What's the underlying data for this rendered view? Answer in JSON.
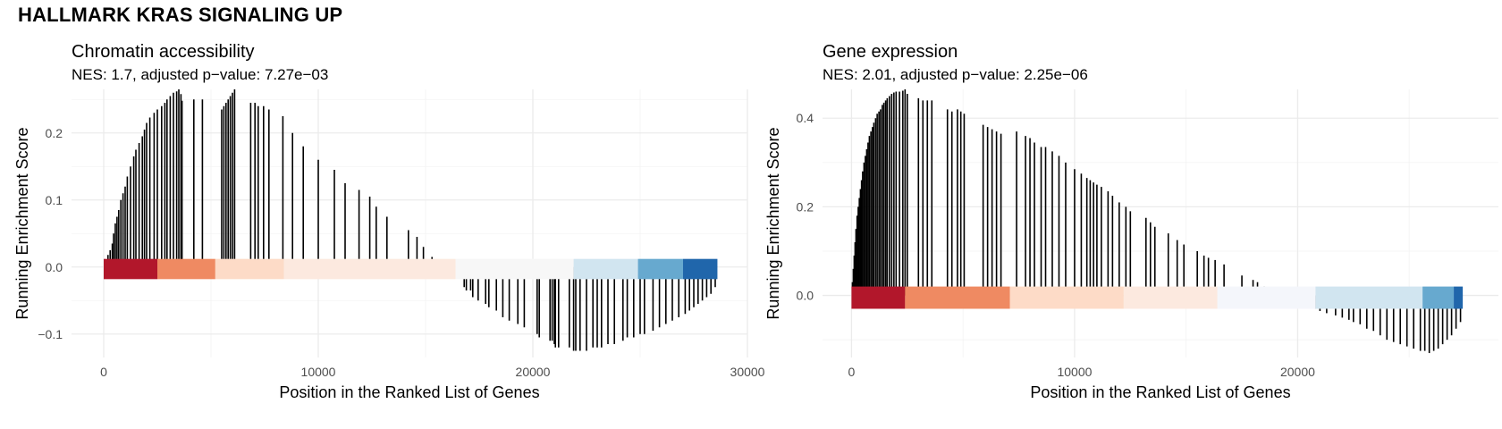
{
  "title": "HALLMARK KRAS SIGNALING UP",
  "colors": {
    "up_dark": "#b2182b",
    "up_mid": "#ef8a62",
    "up_light": "#fddbc7",
    "neutral": "#f7f7f7",
    "down_light": "#d1e5f0",
    "down_mid": "#67a9cf",
    "down_dark": "#2166ac",
    "hit": "#000000"
  },
  "chart_data": [
    {
      "type": "bar",
      "title": "Chromatin accessibility",
      "subtitle": "NES: 1.7, adjusted p−value: 7.27e−03",
      "xlabel": "Position in the Ranked List of Genes",
      "ylabel": "Running Enrichment Score",
      "xlim": [
        -1500,
        30000
      ],
      "ylim": [
        -0.135,
        0.265
      ],
      "x_ticks": [
        0,
        10000,
        20000,
        30000
      ],
      "x_tick_labels": [
        "0",
        "10000",
        "20000",
        "30000"
      ],
      "y_ticks": [
        -0.1,
        0.0,
        0.1,
        0.2
      ],
      "y_tick_labels": [
        "−0.1",
        "0.0",
        "0.1",
        "0.2"
      ],
      "grid": true,
      "rank_color_bar": {
        "y_range": [
          -0.018,
          0.012
        ],
        "segments": [
          {
            "x0": 0,
            "x1": 2500,
            "color": "#b2182b"
          },
          {
            "x0": 2500,
            "x1": 5200,
            "color": "#ef8a62"
          },
          {
            "x0": 5200,
            "x1": 8400,
            "color": "#fddbc7"
          },
          {
            "x0": 8400,
            "x1": 16400,
            "color": "#fce9df"
          },
          {
            "x0": 16400,
            "x1": 21900,
            "color": "#f7f7f7"
          },
          {
            "x0": 21900,
            "x1": 24900,
            "color": "#d1e5f0"
          },
          {
            "x0": 24900,
            "x1": 27000,
            "color": "#67a9cf"
          },
          {
            "x0": 27000,
            "x1": 28600,
            "color": "#2166ac"
          }
        ]
      },
      "hits": {
        "x": [
          100,
          150,
          200,
          300,
          400,
          460,
          540,
          620,
          700,
          800,
          900,
          1000,
          1100,
          1250,
          1400,
          1500,
          1650,
          1800,
          1900,
          2000,
          2150,
          2350,
          2500,
          2700,
          2850,
          2950,
          3100,
          3250,
          3400,
          3500,
          3600,
          3650,
          4200,
          4600,
          5500,
          5600,
          5700,
          5800,
          5900,
          6000,
          6100,
          6850,
          7050,
          7200,
          7450,
          7700,
          8350,
          8800,
          9300,
          10000,
          10750,
          11250,
          11900,
          12400,
          12700,
          13200,
          14200,
          14600,
          14900,
          15300,
          16200,
          16800,
          16900,
          17100,
          17200,
          17450,
          17800,
          17950,
          18300,
          18600,
          18900,
          19300,
          19600,
          20200,
          20300,
          20800,
          20900,
          21000,
          21050,
          21200,
          21700,
          21900,
          22000,
          22200,
          22500,
          22800,
          23000,
          23200,
          23500,
          23800,
          24200,
          24400,
          24700,
          25000,
          25200,
          25600,
          25900,
          26200,
          26500,
          26800,
          27100,
          27300,
          27500,
          27700,
          27900,
          28100,
          28300,
          28500
        ],
        "es": [
          0.005,
          0.01,
          0.018,
          0.025,
          0.035,
          0.05,
          0.065,
          0.075,
          0.085,
          0.1,
          0.11,
          0.12,
          0.135,
          0.15,
          0.165,
          0.175,
          0.185,
          0.195,
          0.205,
          0.215,
          0.223,
          0.23,
          0.235,
          0.24,
          0.245,
          0.25,
          0.255,
          0.26,
          0.262,
          0.265,
          0.258,
          0.248,
          0.25,
          0.25,
          0.235,
          0.24,
          0.245,
          0.25,
          0.255,
          0.26,
          0.265,
          0.245,
          0.245,
          0.24,
          0.24,
          0.235,
          0.225,
          0.2,
          0.18,
          0.16,
          0.145,
          0.125,
          0.115,
          0.105,
          0.09,
          0.075,
          0.055,
          0.045,
          0.03,
          0.015,
          -0.015,
          -0.03,
          -0.035,
          -0.035,
          -0.045,
          -0.05,
          -0.055,
          -0.06,
          -0.065,
          -0.075,
          -0.08,
          -0.085,
          -0.09,
          -0.1,
          -0.105,
          -0.11,
          -0.11,
          -0.115,
          -0.12,
          -0.12,
          -0.12,
          -0.125,
          -0.125,
          -0.125,
          -0.125,
          -0.12,
          -0.12,
          -0.12,
          -0.115,
          -0.115,
          -0.11,
          -0.105,
          -0.105,
          -0.1,
          -0.1,
          -0.095,
          -0.09,
          -0.085,
          -0.08,
          -0.075,
          -0.07,
          -0.065,
          -0.06,
          -0.055,
          -0.05,
          -0.045,
          -0.04,
          -0.03
        ]
      }
    },
    {
      "type": "bar",
      "title": "Gene expression",
      "subtitle": "NES: 2.01, adjusted p−value: 2.25e−06",
      "xlabel": "Position in the Ranked List of Genes",
      "ylabel": "Running Enrichment Score",
      "xlim": [
        -1300,
        29000
      ],
      "ylim": [
        -0.14,
        0.465
      ],
      "x_ticks": [
        0,
        10000,
        20000
      ],
      "x_tick_labels": [
        "0",
        "10000",
        "20000"
      ],
      "y_ticks": [
        0.0,
        0.2,
        0.4
      ],
      "y_tick_labels": [
        "0.0",
        "0.2",
        "0.4"
      ],
      "grid": true,
      "rank_color_bar": {
        "y_range": [
          -0.03,
          0.02
        ],
        "segments": [
          {
            "x0": 0,
            "x1": 2400,
            "color": "#b2182b"
          },
          {
            "x0": 2400,
            "x1": 7100,
            "color": "#ef8a62"
          },
          {
            "x0": 7100,
            "x1": 12200,
            "color": "#fddbc7"
          },
          {
            "x0": 12200,
            "x1": 16400,
            "color": "#fce9df"
          },
          {
            "x0": 16400,
            "x1": 20800,
            "color": "#f4f6fb"
          },
          {
            "x0": 20800,
            "x1": 25600,
            "color": "#d1e5f0"
          },
          {
            "x0": 25600,
            "x1": 27000,
            "color": "#67a9cf"
          },
          {
            "x0": 27000,
            "x1": 27400,
            "color": "#2166ac"
          }
        ]
      },
      "hits": {
        "x": [
          40,
          80,
          120,
          160,
          200,
          250,
          300,
          350,
          400,
          450,
          500,
          560,
          620,
          680,
          740,
          800,
          870,
          940,
          1000,
          1080,
          1150,
          1230,
          1300,
          1380,
          1450,
          1530,
          1600,
          1700,
          1800,
          1900,
          2000,
          2150,
          2300,
          2400,
          2500,
          3000,
          3200,
          3400,
          3600,
          4300,
          4500,
          4750,
          4900,
          5050,
          5900,
          6100,
          6300,
          6500,
          6700,
          7400,
          7800,
          8000,
          8200,
          8500,
          8700,
          9000,
          9300,
          9600,
          10000,
          10300,
          10550,
          10700,
          10850,
          11000,
          11200,
          11500,
          11700,
          12000,
          12300,
          12500,
          13200,
          13400,
          13600,
          14200,
          14600,
          14900,
          15500,
          15800,
          16000,
          16300,
          16700,
          17500,
          18000,
          18200,
          18500,
          18700,
          19000,
          19500,
          19900,
          20300,
          20500,
          20800,
          21000,
          21300,
          21700,
          22000,
          22300,
          22500,
          22800,
          23100,
          23400,
          23700,
          24000,
          24300,
          24600,
          24900,
          25200,
          25500,
          25700,
          25900,
          26100,
          26300,
          26500,
          26700,
          26900,
          27100,
          27300
        ],
        "es": [
          0.03,
          0.06,
          0.09,
          0.12,
          0.15,
          0.18,
          0.2,
          0.22,
          0.24,
          0.26,
          0.28,
          0.3,
          0.315,
          0.33,
          0.345,
          0.36,
          0.37,
          0.38,
          0.39,
          0.4,
          0.41,
          0.415,
          0.42,
          0.43,
          0.435,
          0.44,
          0.445,
          0.45,
          0.455,
          0.458,
          0.46,
          0.46,
          0.462,
          0.465,
          0.455,
          0.445,
          0.44,
          0.44,
          0.44,
          0.42,
          0.415,
          0.42,
          0.415,
          0.41,
          0.385,
          0.38,
          0.375,
          0.37,
          0.365,
          0.37,
          0.36,
          0.355,
          0.345,
          0.335,
          0.335,
          0.325,
          0.315,
          0.3,
          0.285,
          0.275,
          0.265,
          0.26,
          0.255,
          0.25,
          0.245,
          0.235,
          0.225,
          0.21,
          0.2,
          0.19,
          0.175,
          0.165,
          0.155,
          0.14,
          0.125,
          0.115,
          0.1,
          0.09,
          0.085,
          0.08,
          0.07,
          0.045,
          0.035,
          0.03,
          0.02,
          0.015,
          0.01,
          0.005,
          -0.005,
          -0.015,
          -0.02,
          -0.03,
          -0.035,
          -0.04,
          -0.045,
          -0.05,
          -0.055,
          -0.06,
          -0.065,
          -0.075,
          -0.08,
          -0.09,
          -0.1,
          -0.105,
          -0.11,
          -0.115,
          -0.12,
          -0.125,
          -0.125,
          -0.13,
          -0.125,
          -0.12,
          -0.11,
          -0.1,
          -0.09,
          -0.075,
          -0.06,
          -0.04
        ]
      }
    }
  ]
}
